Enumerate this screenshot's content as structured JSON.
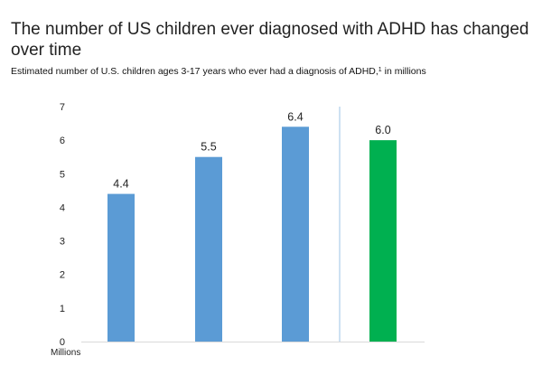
{
  "chart_data": {
    "type": "bar",
    "title": "The number of US children ever diagnosed with ADHD has changed over time",
    "subtitle": "Estimated number of U.S. children ages 3-17 years who ever had a diagnosis of ADHD,",
    "subtitle_footnote": "1",
    "subtitle_suffix": " in millions",
    "xlabel": "",
    "ylabel": "Millions",
    "ylim": [
      0,
      7
    ],
    "yticks": [
      0,
      1,
      2,
      3,
      4,
      5,
      6,
      7
    ],
    "categories": [
      "",
      "",
      "",
      ""
    ],
    "values": [
      4.4,
      5.5,
      6.4,
      6.0
    ],
    "value_labels": [
      "4.4",
      "5.5",
      "6.4",
      "6.0"
    ],
    "bar_colors": [
      "#5b9bd5",
      "#5b9bd5",
      "#5b9bd5",
      "#00b050"
    ],
    "divider_after_index": 2,
    "divider_color": "#9dc3e6",
    "grid": false,
    "legend": "none"
  }
}
